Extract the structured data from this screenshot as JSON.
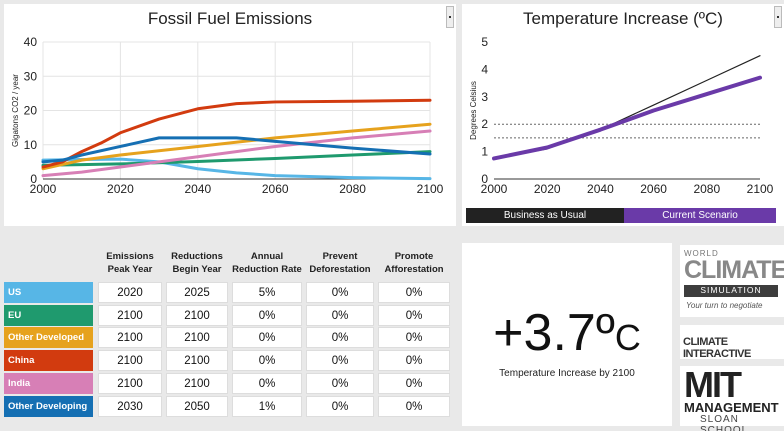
{
  "emissions_chart": {
    "title": "Fossil Fuel Emissions",
    "chart_data": {
      "type": "line",
      "title": "Fossil Fuel Emissions",
      "ylabel": "Gigatons CO2 / year",
      "xlabel": "",
      "xlim": [
        2000,
        2100
      ],
      "ylim": [
        0,
        40
      ],
      "xticks": [
        "2000",
        "2020",
        "2040",
        "2060",
        "2080",
        "2100"
      ],
      "yticks": [
        "0",
        "10",
        "20",
        "30",
        "40"
      ],
      "grid": true,
      "series": [
        {
          "color": "#57b6e6",
          "x": [
            2000,
            2010,
            2020,
            2030,
            2040,
            2050,
            2060,
            2080,
            2100
          ],
          "y": [
            5.5,
            5.7,
            5.8,
            5.0,
            3.0,
            1.8,
            1.0,
            0.4,
            0.1
          ]
        },
        {
          "color": "#1f9a6e",
          "x": [
            2000,
            2010,
            2020,
            2040,
            2060,
            2080,
            2100
          ],
          "y": [
            4.0,
            4.2,
            4.4,
            5.1,
            6.0,
            7.0,
            8.0
          ]
        },
        {
          "color": "#e6a21d",
          "x": [
            2000,
            2010,
            2020,
            2040,
            2060,
            2080,
            2100
          ],
          "y": [
            3.0,
            5.5,
            7.0,
            9.5,
            12.0,
            14.0,
            16.0
          ]
        },
        {
          "color": "#d23b0f",
          "x": [
            2000,
            2005,
            2010,
            2015,
            2020,
            2030,
            2040,
            2050,
            2060,
            2080,
            2100
          ],
          "y": [
            3.5,
            5.0,
            8.0,
            10.5,
            13.5,
            17.5,
            20.5,
            22.0,
            22.5,
            22.7,
            23.0
          ]
        },
        {
          "color": "#d77fb6",
          "x": [
            2000,
            2010,
            2020,
            2040,
            2060,
            2080,
            2100
          ],
          "y": [
            1.0,
            2.0,
            3.5,
            6.5,
            9.5,
            12.0,
            14.0
          ]
        },
        {
          "color": "#156fb3",
          "x": [
            2000,
            2005,
            2010,
            2020,
            2030,
            2040,
            2050,
            2060,
            2080,
            2100
          ],
          "y": [
            5.0,
            5.5,
            7.0,
            9.5,
            12.0,
            12.0,
            12.0,
            11.0,
            9.0,
            7.3
          ]
        }
      ]
    }
  },
  "temp_chart": {
    "title": "Temperature Increase (ºC)",
    "chart_data": {
      "type": "line",
      "title": "Temperature Increase (ºC)",
      "ylabel": "Degrees Celsius",
      "xlim": [
        2000,
        2100
      ],
      "ylim": [
        0,
        5
      ],
      "xticks": [
        "2000",
        "2020",
        "2040",
        "2060",
        "2080",
        "2100"
      ],
      "yticks": [
        "0",
        "1",
        "2",
        "3",
        "4",
        "5"
      ],
      "reference_lines": [
        1.5,
        2.0
      ],
      "series": [
        {
          "name": "Business as Usual",
          "color": "#222222",
          "x": [
            2000,
            2020,
            2040,
            2060,
            2080,
            2100
          ],
          "y": [
            0.75,
            1.1,
            1.8,
            2.7,
            3.6,
            4.5
          ]
        },
        {
          "name": "Current Scenario",
          "color": "#6a3aa8",
          "x": [
            2000,
            2020,
            2040,
            2060,
            2080,
            2100
          ],
          "y": [
            0.75,
            1.15,
            1.8,
            2.5,
            3.1,
            3.7
          ]
        }
      ]
    },
    "legend": [
      {
        "label": "Business as Usual",
        "color": "#222222"
      },
      {
        "label": "Current Scenario",
        "color": "#6a3aa8"
      }
    ]
  },
  "table": {
    "headers": [
      "Emissions\nPeak Year",
      "Reductions\nBegin Year",
      "Annual\nReduction Rate",
      "Prevent\nDeforestation",
      "Promote\nAfforestation"
    ],
    "rows": [
      {
        "name": "US",
        "color": "#57b6e6",
        "values": [
          "2020",
          "2025",
          "5%",
          "0%",
          "0%"
        ]
      },
      {
        "name": "EU",
        "color": "#1f9a6e",
        "values": [
          "2100",
          "2100",
          "0%",
          "0%",
          "0%"
        ]
      },
      {
        "name": "Other Developed",
        "color": "#e6a21d",
        "values": [
          "2100",
          "2100",
          "0%",
          "0%",
          "0%"
        ]
      },
      {
        "name": "China",
        "color": "#d23b0f",
        "values": [
          "2100",
          "2100",
          "0%",
          "0%",
          "0%"
        ]
      },
      {
        "name": "India",
        "color": "#d77fb6",
        "values": [
          "2100",
          "2100",
          "0%",
          "0%",
          "0%"
        ]
      },
      {
        "name": "Other Developing",
        "color": "#156fb3",
        "values": [
          "2030",
          "2050",
          "1%",
          "0%",
          "0%"
        ]
      }
    ]
  },
  "result": {
    "value": "+3.7º",
    "unit": "C",
    "caption": "Temperature Increase by 2100"
  },
  "logos": {
    "world_climate": {
      "line1": "WORLD",
      "line2": "CLIMATE",
      "line3": "SIMULATION",
      "tagline": "Your turn to negotiate"
    },
    "climate_interactive": {
      "text": "CLIMATE INTERACTIVE"
    },
    "mit": {
      "line1": "MIT",
      "line2": "MANAGEMENT",
      "line3": "SLOAN SCHOOL"
    }
  }
}
